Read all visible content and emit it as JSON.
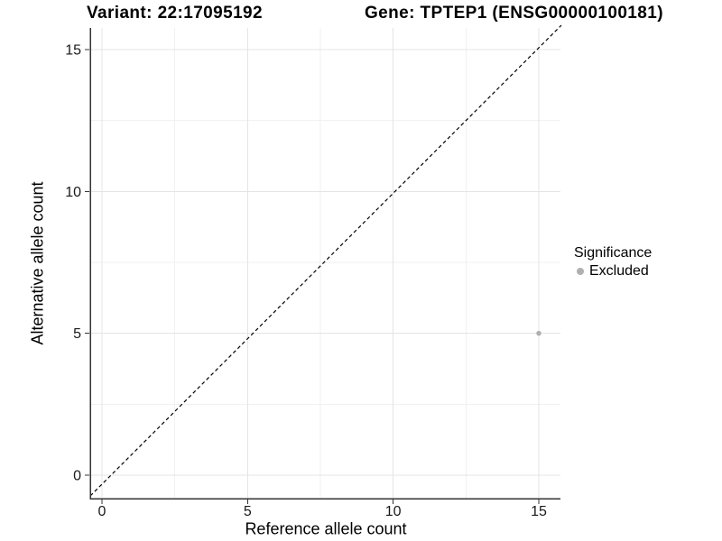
{
  "chart_data": {
    "type": "scatter",
    "title_left": "Variant: 22:17095192",
    "title_right": "Gene: TPTEP1 (ENSG00000100181)",
    "xlabel": "Reference allele count",
    "ylabel": "Alternative allele count",
    "xlim": [
      -0.4,
      15.75
    ],
    "ylim": [
      -0.85,
      15.8
    ],
    "x_ticks": [
      0,
      5,
      10,
      15
    ],
    "y_ticks": [
      0,
      5,
      10,
      15
    ],
    "x_minor_ticks": [
      2.5,
      7.5,
      12.5
    ],
    "y_minor_ticks": [
      2.5,
      7.5,
      12.5
    ],
    "grid": "major+minor",
    "series": [
      {
        "name": "Excluded",
        "points": [
          {
            "x": 15,
            "y": 5
          }
        ],
        "color": "#b0b0b0"
      }
    ],
    "reference_line": {
      "slope": 1,
      "intercept": 0,
      "style": "dashed",
      "color": "#000000"
    },
    "legend": {
      "title": "Significance",
      "position": "right",
      "entries": [
        {
          "label": "Excluded",
          "marker": "circle",
          "color": "#b0b0b0"
        }
      ]
    }
  },
  "colors": {
    "background": "#ffffff",
    "grid_major": "#e4e4e4",
    "grid_minor": "#f1f1f1",
    "axis_line": "#333333",
    "tick_mark": "#333333",
    "tick_label": "#1a1a1a",
    "point": "#b0b0b0",
    "diagonal": "#000000"
  }
}
